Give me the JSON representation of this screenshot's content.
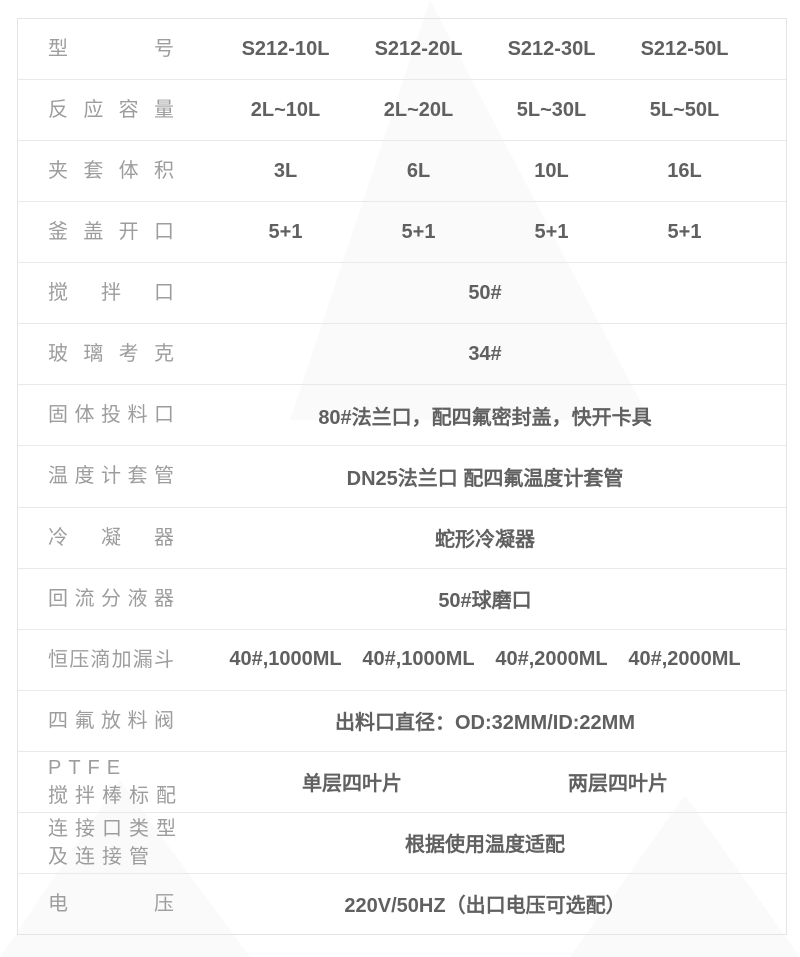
{
  "colors": {
    "background": "#ffffff",
    "table_border": "#e4e4e6",
    "row_divider": "#e9e9eb",
    "label_text": "#9d9d9d",
    "value_text": "#606060",
    "watermark": "#000000"
  },
  "table": {
    "rows": [
      {
        "label": "型号",
        "values": [
          "S212-10L",
          "S212-20L",
          "S212-30L",
          "S212-50L"
        ]
      },
      {
        "label": "反应容量",
        "values": [
          "2L~10L",
          "2L~20L",
          "5L~30L",
          "5L~50L"
        ]
      },
      {
        "label": "夹套体积",
        "values": [
          "3L",
          "6L",
          "10L",
          "16L"
        ]
      },
      {
        "label": "釜盖开口",
        "values": [
          "5+1",
          "5+1",
          "5+1",
          "5+1"
        ]
      },
      {
        "label": "搅拌口",
        "value": "50#"
      },
      {
        "label": "玻璃考克",
        "value": "34#"
      },
      {
        "label": "固体投料口",
        "value": "80#法兰口，配四氟密封盖，快开卡具"
      },
      {
        "label": "温度计套管",
        "value": "DN25法兰口 配四氟温度计套管"
      },
      {
        "label": "冷凝器",
        "value": "蛇形冷凝器"
      },
      {
        "label": "回流分液器",
        "value": "50#球磨口"
      },
      {
        "label": "恒压滴加漏斗",
        "values": [
          "40#,1000ML",
          "40#,1000ML",
          "40#,2000ML",
          "40#,2000ML"
        ]
      },
      {
        "label": "四氟放料阀",
        "value": "出料口直径：OD:32MM/ID:22MM"
      },
      {
        "label_lines": [
          "PTFE",
          "搅拌棒标配"
        ],
        "values_half": [
          "单层四叶片",
          "两层四叶片"
        ]
      },
      {
        "label_lines": [
          "连接口类型",
          "及连接管"
        ],
        "value": "根据使用温度适配"
      },
      {
        "label": "电压",
        "value": "220V/50HZ（出口电压可选配）"
      }
    ]
  }
}
